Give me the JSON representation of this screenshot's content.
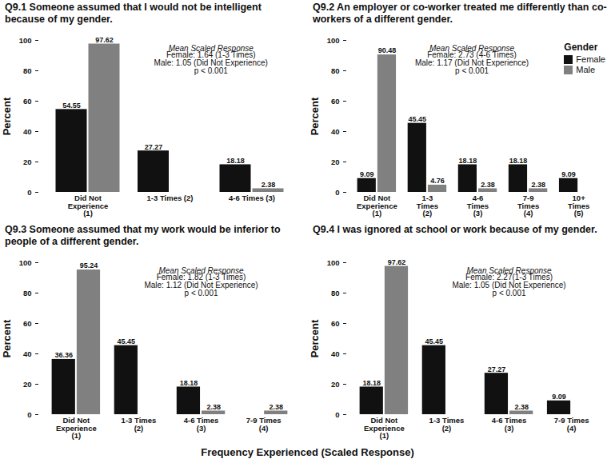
{
  "xlabel": "Frequency Experienced (Scaled Response)",
  "chart_data": [
    {
      "type": "bar",
      "title": "Q9.1 Someone assumed that I would not be intelligent because of my gender.",
      "ylabel": "Percent",
      "categories": [
        "Did Not Experience (1)",
        "1-3 Times (2)",
        "4-6 Times (3)"
      ],
      "series": [
        {
          "name": "Female",
          "color": "#111111",
          "values": [
            54.55,
            27.27,
            18.18
          ]
        },
        {
          "name": "Male",
          "color": "#808080",
          "values": [
            97.62,
            null,
            2.38
          ]
        }
      ],
      "annotations": [
        "Mean Scaled Response",
        "Female: 1.64 (1-3 Times)",
        "Male: 1.05 (Did Not Experience)",
        "p < 0.001"
      ],
      "ylim": [
        0,
        100
      ],
      "yticks": [
        0,
        20,
        40,
        60,
        80,
        100
      ],
      "grid": false,
      "data_labels": true
    },
    {
      "type": "bar",
      "title": "Q9.2 An employer or co-worker treated me differently than co-workers of a different gender.",
      "ylabel": "Percent",
      "categories": [
        "Did Not Experience (1)",
        "1-3 Times (2)",
        "4-6 Times (3)",
        "7-9 Times (4)",
        "10+ Times (5)"
      ],
      "series": [
        {
          "name": "Female",
          "color": "#111111",
          "values": [
            9.09,
            45.45,
            18.18,
            18.18,
            9.09
          ]
        },
        {
          "name": "Male",
          "color": "#808080",
          "values": [
            90.48,
            4.76,
            2.38,
            2.38,
            null
          ]
        }
      ],
      "annotations": [
        "Mean Scaled Response",
        "Female: 2.73 (4-6 Times)",
        "Male: 1.17 (Did Not Experience)",
        "p < 0.001"
      ],
      "ylim": [
        0,
        100
      ],
      "yticks": [
        0,
        20,
        40,
        60,
        80,
        100
      ],
      "grid": false,
      "data_labels": true,
      "legend": "top-right",
      "legend_title": "Gender"
    },
    {
      "type": "bar",
      "title": "Q9.3 Someone assumed that my work would be inferior to people of a different gender.",
      "ylabel": "Percent",
      "categories": [
        "Did Not Experience (1)",
        "1-3 Times (2)",
        "4-6 Times (3)",
        "7-9 Times (4)"
      ],
      "series": [
        {
          "name": "Female",
          "color": "#111111",
          "values": [
            36.36,
            45.45,
            18.18,
            null
          ]
        },
        {
          "name": "Male",
          "color": "#808080",
          "values": [
            95.24,
            null,
            2.38,
            2.38
          ]
        }
      ],
      "annotations": [
        "Mean Scaled Response",
        "Female: 1.82 (1-3 Times)",
        "Male: 1.12 (Did Not Experience)",
        "p < 0.001"
      ],
      "ylim": [
        0,
        100
      ],
      "yticks": [
        0,
        20,
        40,
        60,
        80,
        100
      ],
      "grid": false,
      "data_labels": true
    },
    {
      "type": "bar",
      "title": "Q9.4 I was ignored at school or work because of my gender.",
      "ylabel": "Percent",
      "categories": [
        "Did Not Experience (1)",
        "1-3 Times (2)",
        "4-6 Times (3)",
        "7-9 Times (4)"
      ],
      "series": [
        {
          "name": "Female",
          "color": "#111111",
          "values": [
            18.18,
            45.45,
            27.27,
            9.09
          ]
        },
        {
          "name": "Male",
          "color": "#808080",
          "values": [
            97.62,
            null,
            2.38,
            null
          ]
        }
      ],
      "annotations": [
        "Mean Scaled Response",
        "Female: 2.27(1-3 Times)",
        "Male: 1.05 (Did Not Experience)",
        "p < 0.001"
      ],
      "ylim": [
        0,
        100
      ],
      "yticks": [
        0,
        20,
        40,
        60,
        80,
        100
      ],
      "grid": false,
      "data_labels": true
    }
  ]
}
